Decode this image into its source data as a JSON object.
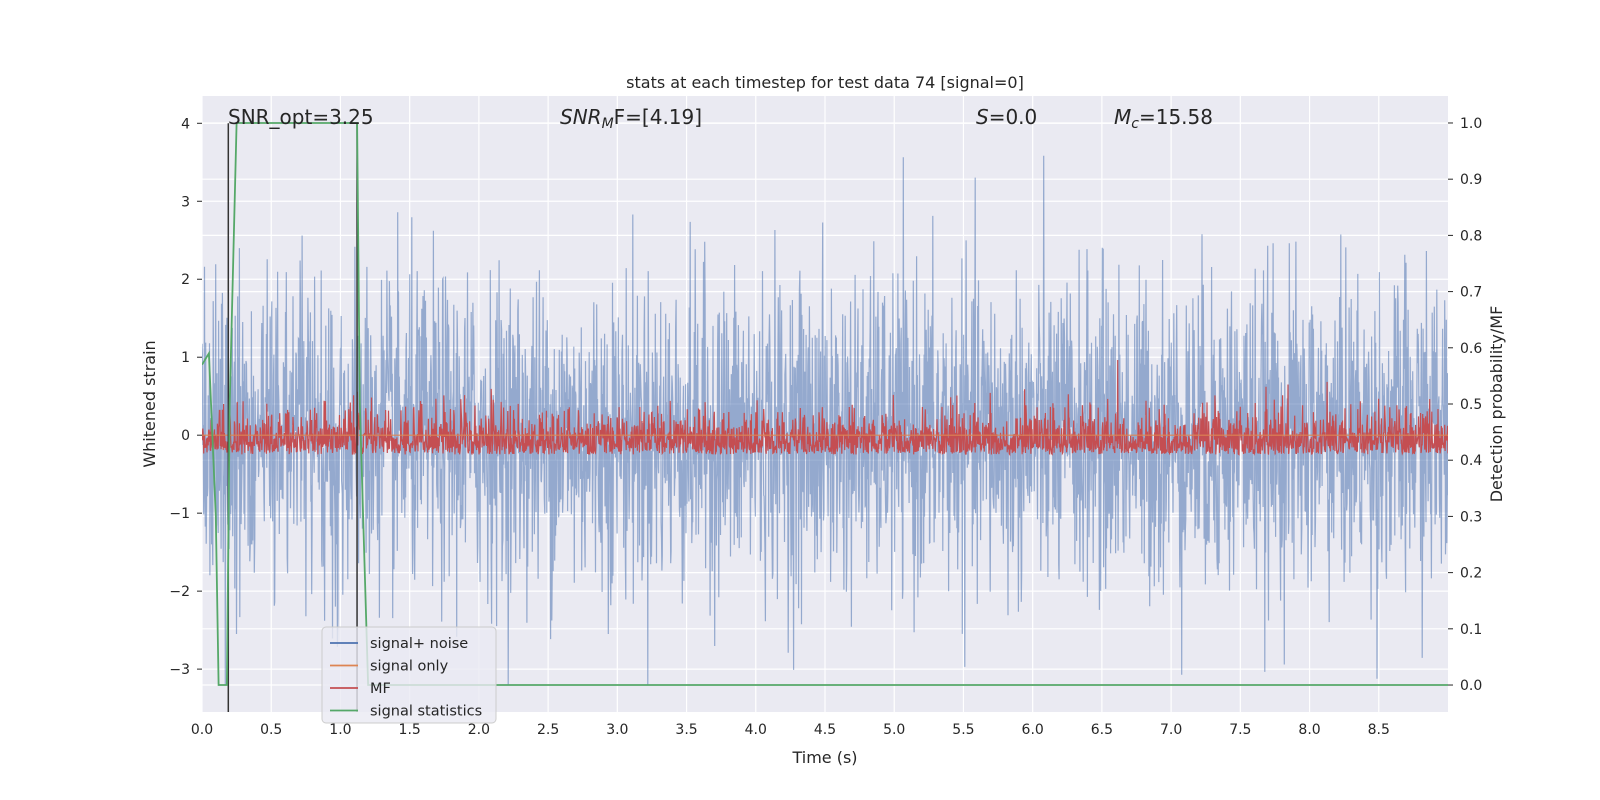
{
  "chart_data": {
    "type": "line",
    "title": "stats at each timestep for test data 74 [signal=0]",
    "xlabel": "Time (s)",
    "ylabel": "Whitened strain",
    "y2label": "Detection probability/MF",
    "xlim": [
      0.0,
      9.0
    ],
    "ylim": [
      -3.55,
      4.35
    ],
    "y2lim": [
      -0.048,
      1.048
    ],
    "xticks": [
      "0.0",
      "0.5",
      "1.0",
      "1.5",
      "2.0",
      "2.5",
      "3.0",
      "3.5",
      "4.0",
      "4.5",
      "5.0",
      "5.5",
      "6.0",
      "6.5",
      "7.0",
      "7.5",
      "8.0",
      "8.5"
    ],
    "xtick_values": [
      0.0,
      0.5,
      1.0,
      1.5,
      2.0,
      2.5,
      3.0,
      3.5,
      4.0,
      4.5,
      5.0,
      5.5,
      6.0,
      6.5,
      7.0,
      7.5,
      8.0,
      8.5
    ],
    "yticks": [
      "−3",
      "−2",
      "−1",
      "0",
      "1",
      "2",
      "3",
      "4"
    ],
    "ytick_values": [
      -3,
      -2,
      -1,
      0,
      1,
      2,
      3,
      4
    ],
    "y2ticks": [
      "0.0",
      "0.1",
      "0.2",
      "0.3",
      "0.4",
      "0.5",
      "0.6",
      "0.7",
      "0.8",
      "0.9",
      "1.0"
    ],
    "y2tick_values": [
      0.0,
      0.1,
      0.2,
      0.3,
      0.4,
      0.5,
      0.6,
      0.7,
      0.8,
      0.9,
      1.0
    ],
    "grid": true,
    "legend_position": "bottom-left",
    "annotations": {
      "snr_opt": "SNR_opt=3.25",
      "snr_mf_label": "SNR",
      "snr_mf_sub": "M",
      "snr_mf_rest": "F=[4.19]",
      "s_label": "S",
      "s_rest": "=0.0",
      "mc_label": "M",
      "mc_sub": "c",
      "mc_rest": "=15.58"
    },
    "series": [
      {
        "name": "signal+ noise",
        "color": "#4c72b0",
        "description": "dense whitened noise envelope",
        "noise_sigma": 1.0,
        "n_points": 3000
      },
      {
        "name": "signal only",
        "color": "#dd8452",
        "values_const": 0.0
      },
      {
        "name": "MF",
        "color": "#c44e52",
        "axis": "right",
        "baseline": 0.42,
        "n_points": 3000
      },
      {
        "name": "signal statistics",
        "color": "#55a868",
        "axis": "right",
        "x": [
          0.0,
          0.05,
          0.1,
          0.12,
          0.17,
          0.18,
          0.2,
          0.25,
          1.12,
          1.14,
          1.2,
          1.3,
          9.0
        ],
        "y": [
          0.57,
          0.59,
          0.3,
          0.0,
          0.0,
          0.0,
          0.5,
          1.0,
          1.0,
          0.5,
          0.0,
          0.0,
          0.0
        ]
      }
    ],
    "vertical_lines": [
      0.19,
      1.12
    ]
  },
  "colors": {
    "plot_bg": "#eaeaf2",
    "grid": "#ffffff",
    "vline": "#333333"
  }
}
